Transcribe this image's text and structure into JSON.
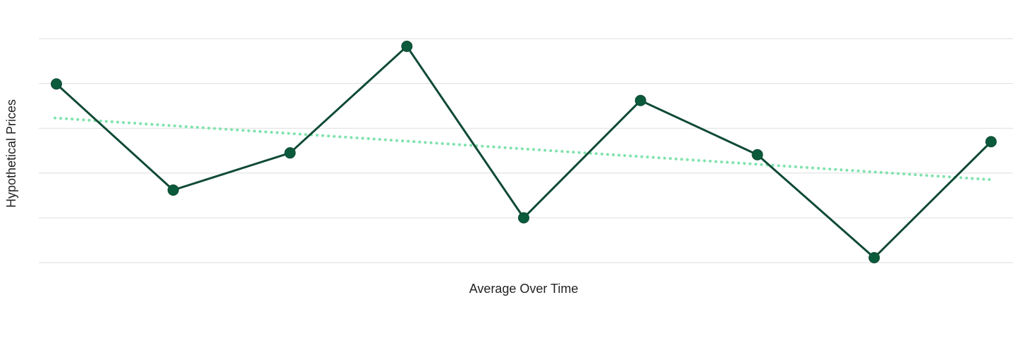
{
  "chart_data": {
    "type": "line",
    "title": "",
    "xlabel": "Average Over Time",
    "ylabel": "Hypothetical Prices",
    "ylim": [
      0,
      5
    ],
    "grid": true,
    "x": [
      1,
      2,
      3,
      4,
      5,
      6,
      7,
      8,
      9
    ],
    "series": [
      {
        "values": [
          3.99,
          1.62,
          2.45,
          4.83,
          1.0,
          3.62,
          2.41,
          0.11,
          2.7
        ],
        "color": "#0f4a35",
        "marker_color": "#0b5a3c"
      }
    ],
    "trendline": {
      "values": [
        3.23,
        1.85
      ],
      "color": "#7fe3ad",
      "style": "dotted"
    }
  }
}
